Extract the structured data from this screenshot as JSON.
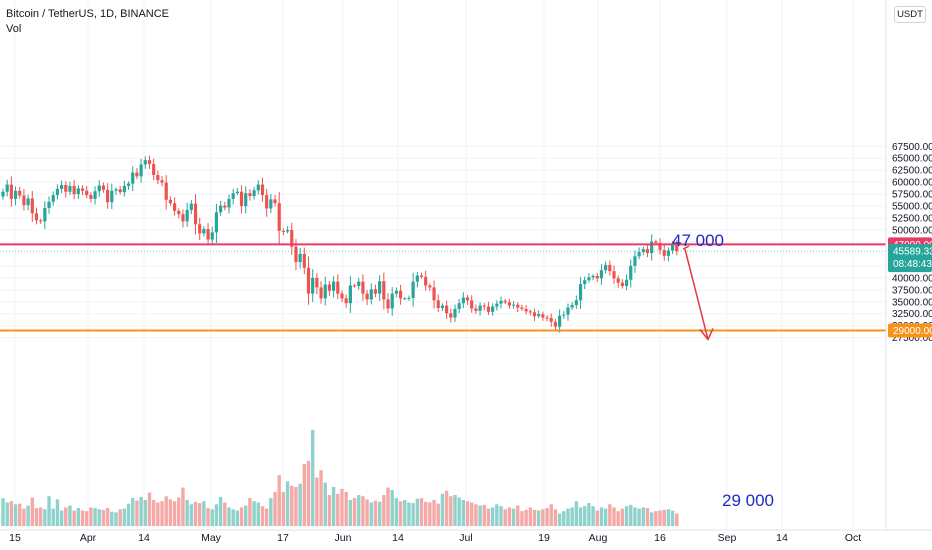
{
  "header": {
    "title": "Bitcoin / TetherUS, 1D, BINANCE",
    "volume_label": "Vol",
    "currency_badge": "USDT"
  },
  "chart_data": {
    "type": "candlestick",
    "symbol": "Bitcoin / TetherUS",
    "interval": "1D",
    "exchange": "BINANCE",
    "ylim": [
      25000,
      68500
    ],
    "y_ticks": [
      "67500.00",
      "65000.00",
      "62500.00",
      "60000.00",
      "57500.00",
      "55000.00",
      "52500.00",
      "50000.00",
      "47500.00",
      "42500.00",
      "40000.00",
      "37500.00",
      "35000.00",
      "32500.00",
      "30000.00",
      "27500.00"
    ],
    "x_ticks": [
      "15",
      "Apr",
      "14",
      "May",
      "17",
      "Jun",
      "14",
      "Jul",
      "19",
      "Aug",
      "16",
      "Sep",
      "14",
      "Oct"
    ],
    "closes": [
      58000,
      59500,
      56500,
      58200,
      57200,
      55200,
      56600,
      53500,
      52000,
      51800,
      54600,
      55900,
      57300,
      58600,
      59400,
      58000,
      59200,
      57500,
      58700,
      58200,
      57300,
      56500,
      58100,
      59300,
      58400,
      55800,
      58200,
      58500,
      57900,
      59200,
      59700,
      62000,
      61200,
      63700,
      64600,
      63800,
      61500,
      60400,
      59900,
      56300,
      55600,
      54000,
      53300,
      51800,
      54200,
      55500,
      51200,
      49300,
      50200,
      48000,
      49500,
      53700,
      55100,
      54700,
      56500,
      57700,
      58000,
      55000,
      57700,
      57100,
      58300,
      59500,
      57300,
      54500,
      56400,
      55600,
      49800,
      49700,
      50000,
      46500,
      43300,
      45000,
      42100,
      36700,
      40000,
      38000,
      35700,
      38600,
      37300,
      39200,
      36700,
      35700,
      34700,
      38400,
      38300,
      39200,
      36700,
      35500,
      37600,
      36700,
      39300,
      35500,
      33600,
      36700,
      37300,
      35700,
      35700,
      35800,
      39200,
      40500,
      40200,
      38400,
      38000,
      35300,
      33700,
      34200,
      32600,
      31700,
      33500,
      34700,
      35900,
      35300,
      33600,
      33100,
      34200,
      34000,
      32900,
      34000,
      34600,
      35200,
      34900,
      34200,
      34400,
      33800,
      33500,
      33000,
      32800,
      32000,
      32400,
      31700,
      31600,
      30800,
      29800,
      32100,
      32300,
      33800,
      34300,
      35300,
      38700,
      39500,
      40100,
      40400,
      39900,
      41600,
      42700,
      41400,
      39900,
      39000,
      38300,
      39600,
      42500,
      44500,
      45400,
      46000,
      45200,
      47600,
      47300,
      45800,
      44600,
      45700,
      46800,
      45600
    ],
    "volumes": [
      0.45,
      0.38,
      0.4,
      0.35,
      0.36,
      0.28,
      0.33,
      0.46,
      0.29,
      0.3,
      0.27,
      0.48,
      0.28,
      0.43,
      0.25,
      0.3,
      0.33,
      0.25,
      0.29,
      0.25,
      0.24,
      0.3,
      0.29,
      0.27,
      0.26,
      0.29,
      0.23,
      0.22,
      0.27,
      0.28,
      0.36,
      0.45,
      0.41,
      0.47,
      0.42,
      0.54,
      0.42,
      0.38,
      0.4,
      0.48,
      0.43,
      0.4,
      0.46,
      0.62,
      0.42,
      0.35,
      0.39,
      0.37,
      0.4,
      0.29,
      0.27,
      0.35,
      0.47,
      0.38,
      0.3,
      0.27,
      0.25,
      0.3,
      0.33,
      0.45,
      0.4,
      0.38,
      0.32,
      0.28,
      0.45,
      0.55,
      0.82,
      0.55,
      0.72,
      0.65,
      0.63,
      0.68,
      1.0,
      1.05,
      1.55,
      0.78,
      0.9,
      0.7,
      0.5,
      0.63,
      0.52,
      0.6,
      0.55,
      0.42,
      0.45,
      0.5,
      0.48,
      0.43,
      0.38,
      0.41,
      0.39,
      0.5,
      0.62,
      0.58,
      0.45,
      0.4,
      0.42,
      0.38,
      0.37,
      0.44,
      0.45,
      0.39,
      0.38,
      0.42,
      0.36,
      0.52,
      0.57,
      0.48,
      0.5,
      0.46,
      0.42,
      0.4,
      0.38,
      0.35,
      0.33,
      0.34,
      0.28,
      0.3,
      0.35,
      0.32,
      0.27,
      0.3,
      0.28,
      0.33,
      0.24,
      0.26,
      0.3,
      0.26,
      0.25,
      0.27,
      0.29,
      0.35,
      0.27,
      0.2,
      0.24,
      0.28,
      0.3,
      0.4,
      0.3,
      0.32,
      0.37,
      0.32,
      0.25,
      0.3,
      0.28,
      0.35,
      0.3,
      0.24,
      0.28,
      0.32,
      0.34,
      0.3,
      0.28,
      0.3,
      0.29,
      0.22,
      0.24,
      0.25,
      0.26,
      0.27,
      0.25,
      0.2
    ],
    "lines": [
      {
        "label": "47000.00",
        "value": 47000,
        "color": "#e33d6c"
      },
      {
        "label": "29000.00",
        "value": 29000,
        "color": "#f7931a"
      }
    ],
    "last_price": {
      "value": "45589.33",
      "countdown": "08:48:43",
      "color": "#26a69a"
    },
    "annotations": [
      {
        "text": "47 000",
        "color": "#1b2cc1"
      },
      {
        "text": "29 000",
        "color": "#1b2cc1"
      }
    ],
    "projection_arrow": {
      "from": 46000,
      "to": 29000,
      "color": "#e5393b"
    },
    "colors": {
      "up": "#26a69a",
      "down": "#ef5350"
    }
  }
}
